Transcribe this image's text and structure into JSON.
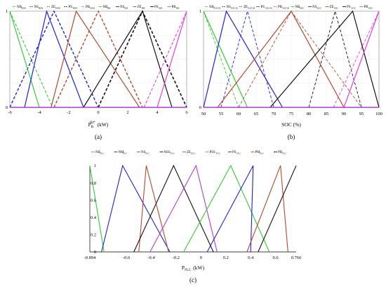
{
  "colors": {
    "green": "#33cc33",
    "blue": "#1f1fd6",
    "brown": "#b5472c",
    "black": "#111111",
    "purple": "#b23ad6",
    "magenta": "#e23ce6",
    "gray": "#999999"
  },
  "panels": [
    {
      "id": "a",
      "label": "(a)",
      "xlabel_main": "P",
      "xlabel_sub": "B",
      "xlabel_sup": "BI*",
      "xlabel_unit": "(kW)",
      "chart_data": {
        "type": "line",
        "xlim": [
          -6,
          6
        ],
        "ylim": [
          0,
          1
        ],
        "xticks": [
          -6,
          -4,
          -2,
          0,
          2,
          4,
          6
        ],
        "yticks": [
          0,
          1
        ],
        "legend": [
          {
            "name": "NB",
            "sub": "BIM",
            "color": "#33cc33",
            "dashed": true
          },
          {
            "name": "NS",
            "sub": "BIM",
            "color": "#1f1fd6",
            "dashed": true
          },
          {
            "name": "ZE",
            "sub": "BIM",
            "color": "#b5472c",
            "dashed": true
          },
          {
            "name": "PS",
            "sub": "BIM",
            "color": "#111111",
            "dashed": true
          },
          {
            "name": "PB",
            "sub": "BIM",
            "color": "#e23ce6",
            "dashed": true
          },
          {
            "name": "NB",
            "sub": "BH",
            "color": "#33cc33",
            "dashed": false
          },
          {
            "name": "NS",
            "sub": "BH",
            "color": "#1f1fd6",
            "dashed": false
          },
          {
            "name": "ZE",
            "sub": "BH",
            "color": "#b5472c",
            "dashed": false
          },
          {
            "name": "PS",
            "sub": "BH",
            "color": "#111111",
            "dashed": false
          },
          {
            "name": "PB",
            "sub": "BH",
            "color": "#e23ce6",
            "dashed": false
          }
        ],
        "series": [
          {
            "name": "NB",
            "color": "#33cc33",
            "dashed": true,
            "width": 1.1,
            "points": [
              [
                -6,
                1
              ],
              [
                -3.1,
                0
              ]
            ]
          },
          {
            "name": "NS",
            "color": "#1f1fd6",
            "dashed": true,
            "width": 1.4,
            "points": [
              [
                -6,
                0
              ],
              [
                -3,
                1
              ],
              [
                0,
                0
              ]
            ]
          },
          {
            "name": "ZE",
            "color": "#b5472c",
            "dashed": true,
            "width": 1.4,
            "points": [
              [
                -3,
                0
              ],
              [
                0,
                1
              ],
              [
                3,
                0
              ]
            ]
          },
          {
            "name": "PS",
            "color": "#111111",
            "dashed": true,
            "width": 1.6,
            "points": [
              [
                0,
                0
              ],
              [
                3,
                1
              ],
              [
                6,
                0
              ]
            ]
          },
          {
            "name": "PB",
            "color": "#e23ce6",
            "dashed": true,
            "width": 1.1,
            "points": [
              [
                3.1,
                0
              ],
              [
                6,
                1
              ]
            ]
          },
          {
            "name": "NB",
            "color": "#33cc33",
            "dashed": false,
            "width": 1.2,
            "points": [
              [
                -6,
                1
              ],
              [
                -4,
                0
              ]
            ]
          },
          {
            "name": "NS",
            "color": "#1f1fd6",
            "dashed": false,
            "width": 1.2,
            "points": [
              [
                -5,
                0
              ],
              [
                -3.5,
                1
              ],
              [
                -1,
                0
              ]
            ]
          },
          {
            "name": "ZE",
            "color": "#b5472c",
            "dashed": false,
            "width": 1.2,
            "points": [
              [
                -3.2,
                0
              ],
              [
                -1.5,
                1
              ],
              [
                2.8,
                0
              ]
            ]
          },
          {
            "name": "PS",
            "color": "#111111",
            "dashed": false,
            "width": 1.2,
            "points": [
              [
                -1,
                0
              ],
              [
                3,
                1
              ],
              [
                5,
                0
              ]
            ]
          },
          {
            "name": "PB",
            "color": "#e23ce6",
            "dashed": false,
            "width": 1.2,
            "points": [
              [
                4,
                0
              ],
              [
                6,
                1
              ]
            ]
          }
        ]
      }
    },
    {
      "id": "b",
      "label": "(b)",
      "xlabel_main": "SOC (%)",
      "xlabel_sub": "",
      "xlabel_sup": "",
      "xlabel_unit": "",
      "chart_data": {
        "type": "line",
        "xlim": [
          50,
          100
        ],
        "ylim": [
          0,
          1
        ],
        "xticks": [
          50,
          55,
          60,
          65,
          70,
          75,
          80,
          85,
          90,
          95,
          100
        ],
        "yticks": [
          0,
          1
        ],
        "legend": [
          {
            "name": "NB",
            "sub": "SOCM",
            "color": "#33cc33",
            "dashed": true
          },
          {
            "name": "NS",
            "sub": "SOCM",
            "color": "#1f1fd6",
            "dashed": true
          },
          {
            "name": "ZE",
            "sub": "SOCM",
            "color": "#b5472c",
            "dashed": true
          },
          {
            "name": "PS",
            "sub": "SOCM",
            "color": "#111111",
            "dashed": true
          },
          {
            "name": "PB",
            "sub": "SOCM",
            "color": "#e23ce6",
            "dashed": true
          },
          {
            "name": "NB",
            "sub": "SOC",
            "color": "#33cc33",
            "dashed": false
          },
          {
            "name": "NS",
            "sub": "SOC",
            "color": "#1f1fd6",
            "dashed": false
          },
          {
            "name": "ZE",
            "sub": "SOC",
            "color": "#b5472c",
            "dashed": false
          },
          {
            "name": "PS",
            "sub": "SOC",
            "color": "#111111",
            "dashed": false
          },
          {
            "name": "PB",
            "sub": "SOC",
            "color": "#e23ce6",
            "dashed": false
          }
        ],
        "series": [
          {
            "name": "NB",
            "color": "#33cc33",
            "dashed": true,
            "width": 0.9,
            "points": [
              [
                50,
                1
              ],
              [
                60,
                0
              ]
            ]
          },
          {
            "name": "NS",
            "color": "#1f1fd6",
            "dashed": true,
            "width": 0.9,
            "points": [
              [
                55,
                0
              ],
              [
                62.5,
                1
              ],
              [
                70,
                0
              ]
            ]
          },
          {
            "name": "ZE",
            "color": "#b5472c",
            "dashed": true,
            "width": 0.9,
            "points": [
              [
                60,
                0
              ],
              [
                75,
                1
              ],
              [
                95,
                0
              ]
            ]
          },
          {
            "name": "PS",
            "color": "#111111",
            "dashed": true,
            "width": 0.9,
            "points": [
              [
                80,
                0
              ],
              [
                87.5,
                1
              ],
              [
                95,
                0
              ]
            ]
          },
          {
            "name": "PB",
            "color": "#e23ce6",
            "dashed": true,
            "width": 0.9,
            "points": [
              [
                87,
                0
              ],
              [
                100,
                1
              ]
            ]
          },
          {
            "name": "NB",
            "color": "#33cc33",
            "dashed": false,
            "width": 1.2,
            "points": [
              [
                50,
                1
              ],
              [
                62.5,
                0
              ]
            ]
          },
          {
            "name": "NS",
            "color": "#1f1fd6",
            "dashed": false,
            "width": 1.2,
            "points": [
              [
                50,
                0
              ],
              [
                56.5,
                1
              ],
              [
                72.5,
                0
              ]
            ]
          },
          {
            "name": "ZE",
            "color": "#b5472c",
            "dashed": false,
            "width": 1.2,
            "points": [
              [
                54,
                0
              ],
              [
                75,
                1
              ],
              [
                90,
                0
              ]
            ]
          },
          {
            "name": "PS",
            "color": "#111111",
            "dashed": false,
            "width": 1.2,
            "points": [
              [
                69,
                0
              ],
              [
                92.5,
                1
              ],
              [
                100,
                0
              ]
            ]
          },
          {
            "name": "PB",
            "color": "#e23ce6",
            "dashed": false,
            "width": 1.2,
            "points": [
              [
                90,
                0
              ],
              [
                100,
                1
              ]
            ]
          }
        ]
      }
    },
    {
      "id": "c",
      "label": "(c)",
      "xlabel_main": "P",
      "xlabel_sub": "FLC",
      "xlabel_sup": "",
      "xlabel_unit": "(kW)",
      "chart_data": {
        "type": "line",
        "xlim": [
          -0.894,
          0.766
        ],
        "ylim": [
          0,
          1
        ],
        "xticks": [
          -0.894,
          -0.6,
          -0.4,
          -0.2,
          0,
          0.2,
          0.4,
          0.6,
          0.766
        ],
        "xtick_labels": [
          "-0.894",
          "-0.6",
          "-0.4",
          "-0.2",
          "0",
          "0.2",
          "0.4",
          "0.6",
          "0.766"
        ],
        "yticks": [
          0,
          0.2,
          0.4,
          0.6,
          0.8,
          1
        ],
        "ytick_labels": [
          "0",
          "0.2",
          "0.4",
          "0.6",
          "0.8",
          "1"
        ],
        "legend": [
          {
            "name": "NB",
            "sub": "FLC",
            "color": "#33cc33",
            "dashed": false
          },
          {
            "name": "NM",
            "sub": "FLC",
            "color": "#1f1fd6",
            "dashed": false
          },
          {
            "name": "NS",
            "sub": "FLC",
            "color": "#b5472c",
            "dashed": false
          },
          {
            "name": "NSS",
            "sub": "FLC",
            "color": "#111111",
            "dashed": false
          },
          {
            "name": "ZE",
            "sub": "FLC",
            "color": "#b23ad6",
            "dashed": false
          },
          {
            "name": "PSS",
            "sub": "FLC",
            "color": "#33cc33",
            "dashed": false
          },
          {
            "name": "PS",
            "sub": "FLC",
            "color": "#1f1fd6",
            "dashed": false
          },
          {
            "name": "PM",
            "sub": "FLC",
            "color": "#b5472c",
            "dashed": false
          },
          {
            "name": "PB",
            "sub": "FLC",
            "color": "#111111",
            "dashed": false
          }
        ],
        "series": [
          {
            "name": "NB",
            "color": "#33cc33",
            "dashed": false,
            "width": 1.1,
            "points": [
              [
                -0.894,
                1
              ],
              [
                -0.78,
                0
              ]
            ]
          },
          {
            "name": "NM",
            "color": "#1f1fd6",
            "dashed": false,
            "width": 1.1,
            "points": [
              [
                -0.8,
                0
              ],
              [
                -0.63,
                1
              ],
              [
                -0.25,
                0
              ]
            ]
          },
          {
            "name": "NS",
            "color": "#b5472c",
            "dashed": false,
            "width": 1.1,
            "points": [
              [
                -0.5,
                0
              ],
              [
                -0.44,
                1
              ],
              [
                -0.26,
                0
              ]
            ]
          },
          {
            "name": "NSS",
            "color": "#111111",
            "dashed": false,
            "width": 1.1,
            "points": [
              [
                -0.54,
                0
              ],
              [
                -0.22,
                1
              ],
              [
                0.1,
                0
              ]
            ]
          },
          {
            "name": "ZE",
            "color": "#b23ad6",
            "dashed": false,
            "width": 1.1,
            "points": [
              [
                -0.41,
                0
              ],
              [
                -0.04,
                1
              ],
              [
                0.13,
                0
              ]
            ]
          },
          {
            "name": "PSS",
            "color": "#33cc33",
            "dashed": false,
            "width": 1.1,
            "points": [
              [
                -0.14,
                0
              ],
              [
                0.24,
                1
              ],
              [
                0.55,
                0
              ]
            ]
          },
          {
            "name": "PS",
            "color": "#1f1fd6",
            "dashed": false,
            "width": 1.1,
            "points": [
              [
                0.05,
                0
              ],
              [
                0.42,
                1
              ],
              [
                0.4,
                0
              ]
            ]
          },
          {
            "name": "PM",
            "color": "#b5472c",
            "dashed": false,
            "width": 1.1,
            "points": [
              [
                0.37,
                0
              ],
              [
                0.64,
                1
              ],
              [
                0.7,
                0
              ]
            ]
          },
          {
            "name": "PB",
            "color": "#111111",
            "dashed": false,
            "width": 1.1,
            "points": [
              [
                0.46,
                0
              ],
              [
                0.766,
                1
              ]
            ]
          }
        ]
      }
    }
  ]
}
